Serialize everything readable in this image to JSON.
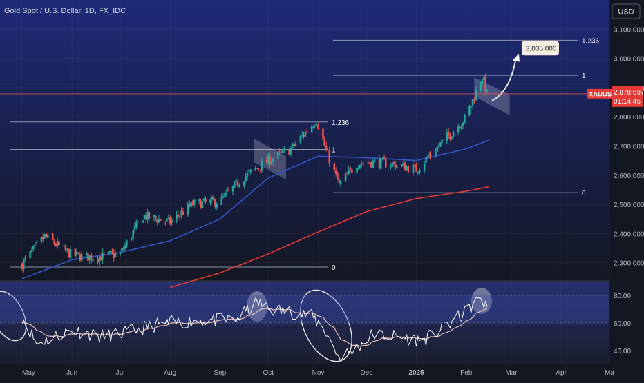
{
  "header": {
    "symbol_title": "Gold Spot / U.S. Dollar, 1D, FX_IDC"
  },
  "currency_button": {
    "label": "USD"
  },
  "price_badge": {
    "symbol": "XAUUSD",
    "price": "2,878.697",
    "countdown": "01:14:46"
  },
  "target_callout": {
    "label": "3,035.000"
  },
  "colors": {
    "background_top": "#1d2570",
    "background_bottom": "#131722",
    "up": "#26a69a",
    "down": "#ef5350",
    "ma_fast": "#2e56c9",
    "ma_slow": "#e53935",
    "rsi": "#ffffff",
    "rsi_ma": "#f3c9b8",
    "fib": "#9aa0b5"
  },
  "icons": [
    "arrow-up-right-icon",
    "ellipse-highlight-icon",
    "channel-box-icon"
  ],
  "chart_data": {
    "type": "candlestick",
    "title": "Gold Spot / U.S. Dollar, 1D, FX_IDC",
    "ylim": [
      2240,
      3200
    ],
    "y_ticks": [
      "3,100.000",
      "3,000.000",
      "2,900.000",
      "2,800.000",
      "2,700.000",
      "2,600.000",
      "2,500.000",
      "2,400.000",
      "2,300.000"
    ],
    "y_tick_values": [
      3100,
      3000,
      2900,
      2800,
      2700,
      2600,
      2500,
      2400,
      2300
    ],
    "x_ticks": [
      "May",
      "Jun",
      "Jul",
      "Aug",
      "Sep",
      "Oct",
      "Nov",
      "Dec",
      "2025",
      "Feb",
      "Mar",
      "Apr",
      "Ma"
    ],
    "x_tick_dates": [
      "2024-05-01",
      "2024-06-01",
      "2024-07-01",
      "2024-08-01",
      "2024-09-01",
      "2024-10-01",
      "2024-11-01",
      "2024-12-01",
      "2025-01-01",
      "2025-02-01",
      "2025-03-01",
      "2025-04-01",
      "2025-05-01"
    ],
    "price_series": {
      "dates": [
        "2024-05-01",
        "2024-05-15",
        "2024-06-01",
        "2024-06-15",
        "2024-07-01",
        "2024-07-15",
        "2024-08-01",
        "2024-08-15",
        "2024-09-01",
        "2024-09-15",
        "2024-10-01",
        "2024-10-15",
        "2024-10-31",
        "2024-11-05",
        "2024-11-14",
        "2024-11-25",
        "2024-12-01",
        "2024-12-15",
        "2025-01-01",
        "2025-01-15",
        "2025-02-01",
        "2025-02-11",
        "2025-02-14"
      ],
      "close": [
        2295,
        2390,
        2325,
        2318,
        2330,
        2460,
        2440,
        2500,
        2510,
        2590,
        2650,
        2690,
        2790,
        2700,
        2565,
        2640,
        2645,
        2640,
        2620,
        2700,
        2800,
        2940,
        2878
      ]
    },
    "ma_fast": {
      "dates": [
        "2024-05-01",
        "2024-06-01",
        "2024-07-01",
        "2024-08-01",
        "2024-09-01",
        "2024-10-01",
        "2024-11-01",
        "2024-12-01",
        "2025-01-01",
        "2025-02-01",
        "2025-02-15"
      ],
      "values": [
        2245,
        2310,
        2335,
        2375,
        2450,
        2590,
        2665,
        2660,
        2650,
        2690,
        2720
      ]
    },
    "ma_slow": {
      "dates": [
        "2024-08-01",
        "2024-09-01",
        "2024-10-01",
        "2024-11-01",
        "2024-12-01",
        "2025-01-01",
        "2025-02-01",
        "2025-02-15"
      ],
      "values": [
        2215,
        2265,
        2330,
        2405,
        2475,
        2520,
        2545,
        2560
      ]
    },
    "fib_sets": [
      {
        "levels": [
          {
            "label": "1.236",
            "value": 2782
          },
          {
            "label": "1",
            "value": 2688
          },
          {
            "label": "0",
            "value": 2285
          }
        ]
      },
      {
        "levels": [
          {
            "label": "1.236",
            "value": 3062
          },
          {
            "label": "1",
            "value": 2942
          },
          {
            "label": "0",
            "value": 2540
          }
        ]
      }
    ],
    "current_price": 2878.697,
    "target": 3035,
    "rsi": {
      "ylim": [
        30,
        90
      ],
      "y_ticks": [
        "80.00",
        "60.00",
        "40.00"
      ],
      "y_tick_values": [
        80,
        60,
        40
      ],
      "band": [
        60,
        80
      ],
      "dates": [
        "2024-05-01",
        "2024-05-10",
        "2024-06-01",
        "2024-06-20",
        "2024-07-01",
        "2024-07-20",
        "2024-08-01",
        "2024-08-20",
        "2024-09-10",
        "2024-09-25",
        "2024-10-01",
        "2024-10-15",
        "2024-10-28",
        "2024-11-05",
        "2024-11-14",
        "2024-11-25",
        "2024-12-05",
        "2024-12-20",
        "2025-01-05",
        "2025-01-20",
        "2025-02-01",
        "2025-02-10",
        "2025-02-14"
      ],
      "values": [
        65,
        45,
        55,
        50,
        52,
        58,
        60,
        62,
        62,
        75,
        70,
        68,
        65,
        55,
        35,
        42,
        52,
        50,
        47,
        58,
        68,
        78,
        70
      ]
    }
  }
}
